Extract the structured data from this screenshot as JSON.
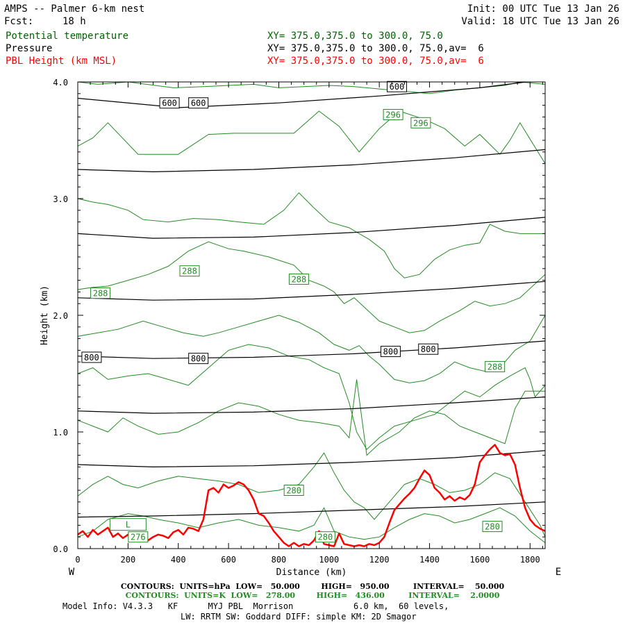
{
  "header": {
    "title": "AMPS -- Palmer 6-km nest",
    "fcst_label": "Fcst:",
    "fcst_value": "18 h",
    "init": "Init: 00 UTC Tue 13 Jan 26",
    "valid": "Valid: 18 UTC Tue 13 Jan 26",
    "fields": [
      {
        "name": "Potential temperature",
        "xy": "XY= 375.0,375.0 to 300.0, 75.0",
        "color": "#006400"
      },
      {
        "name": "Pressure",
        "xy": "XY= 375.0,375.0 to 300.0, 75.0,av=  6",
        "color": "#000000"
      },
      {
        "name": "PBL Height (km MSL)",
        "xy": "XY= 375.0,375.0 to 300.0, 75.0,av=  6",
        "color": "#ff0000"
      }
    ]
  },
  "chart_data": {
    "type": "line",
    "xlabel": "Distance (km)",
    "ylabel": "Height (km)",
    "xlim": [
      0,
      1860
    ],
    "ylim": [
      0,
      4.0
    ],
    "x_ticks": [
      0,
      200,
      400,
      600,
      800,
      1000,
      1200,
      1400,
      1600,
      1800
    ],
    "y_ticks": [
      "0.0",
      "1.0",
      "2.0",
      "3.0",
      "4.0"
    ],
    "west_label": "W",
    "east_label": "E",
    "pressure_contours": {
      "color": "#000000",
      "lines": [
        {
          "x": [
            0,
            400,
            800,
            1200,
            1600,
            1860
          ],
          "y": [
            3.86,
            3.78,
            3.82,
            3.88,
            3.95,
            4.02
          ]
        },
        {
          "x": [
            0,
            300,
            700,
            1100,
            1500,
            1860
          ],
          "y": [
            3.25,
            3.23,
            3.25,
            3.29,
            3.35,
            3.42
          ]
        },
        {
          "x": [
            0,
            300,
            700,
            1100,
            1500,
            1860
          ],
          "y": [
            2.7,
            2.66,
            2.67,
            2.71,
            2.77,
            2.84
          ]
        },
        {
          "x": [
            0,
            300,
            700,
            1100,
            1500,
            1860
          ],
          "y": [
            2.15,
            2.13,
            2.14,
            2.18,
            2.23,
            2.29
          ]
        },
        {
          "x": [
            0,
            300,
            700,
            1100,
            1500,
            1860
          ],
          "y": [
            1.65,
            1.63,
            1.64,
            1.67,
            1.72,
            1.78
          ]
        },
        {
          "x": [
            0,
            300,
            700,
            1100,
            1500,
            1860
          ],
          "y": [
            1.18,
            1.16,
            1.17,
            1.2,
            1.25,
            1.3
          ]
        },
        {
          "x": [
            0,
            300,
            700,
            1100,
            1500,
            1860
          ],
          "y": [
            0.72,
            0.7,
            0.71,
            0.74,
            0.78,
            0.84
          ]
        },
        {
          "x": [
            0,
            300,
            700,
            1100,
            1500,
            1860
          ],
          "y": [
            0.27,
            0.28,
            0.3,
            0.33,
            0.36,
            0.4
          ]
        }
      ],
      "labels": [
        {
          "text": "600",
          "x": 365,
          "y": 3.82
        },
        {
          "text": "600",
          "x": 480,
          "y": 3.82
        },
        {
          "text": "600",
          "x": 1270,
          "y": 3.96
        },
        {
          "text": "800",
          "x": 55,
          "y": 1.64
        },
        {
          "text": "800",
          "x": 480,
          "y": 1.63
        },
        {
          "text": "800",
          "x": 1245,
          "y": 1.69
        },
        {
          "text": "800",
          "x": 1395,
          "y": 1.71
        }
      ]
    },
    "theta_contours": {
      "color": "#228B22",
      "lines": [
        {
          "x": [
            0,
            80,
            200,
            380,
            500,
            600,
            700,
            800,
            900,
            1000,
            1100,
            1200,
            1300,
            1400,
            1500,
            1600,
            1700,
            1760,
            1860
          ],
          "y": [
            4.0,
            3.98,
            4.0,
            3.95,
            3.96,
            3.97,
            3.98,
            3.95,
            3.96,
            3.97,
            3.96,
            3.94,
            3.92,
            3.9,
            3.93,
            3.95,
            3.97,
            4.0,
            3.98
          ]
        },
        {
          "x": [
            0,
            60,
            120,
            240,
            400,
            520,
            620,
            720,
            860,
            960,
            1040,
            1120,
            1200,
            1280,
            1380,
            1460,
            1540,
            1600,
            1680,
            1720,
            1760,
            1860
          ],
          "y": [
            3.45,
            3.52,
            3.65,
            3.38,
            3.38,
            3.55,
            3.56,
            3.56,
            3.56,
            3.75,
            3.62,
            3.4,
            3.6,
            3.75,
            3.68,
            3.6,
            3.45,
            3.55,
            3.38,
            3.5,
            3.65,
            3.3
          ]
        },
        {
          "x": [
            0,
            60,
            120,
            200,
            260,
            360,
            460,
            560,
            640,
            740,
            820,
            880,
            940,
            1000,
            1080,
            1160,
            1220,
            1260,
            1300,
            1360,
            1420,
            1480,
            1540,
            1600,
            1640,
            1700,
            1760,
            1860
          ],
          "y": [
            3.0,
            2.97,
            2.95,
            2.9,
            2.82,
            2.8,
            2.83,
            2.82,
            2.8,
            2.78,
            2.9,
            3.05,
            2.92,
            2.8,
            2.75,
            2.65,
            2.55,
            2.4,
            2.32,
            2.35,
            2.48,
            2.56,
            2.6,
            2.62,
            2.78,
            2.72,
            2.7,
            2.7
          ]
        },
        {
          "x": [
            0,
            60,
            120,
            200,
            280,
            360,
            440,
            520,
            600,
            660,
            760,
            860,
            920,
            980,
            1020,
            1060,
            1100,
            1150,
            1200,
            1260,
            1320,
            1380,
            1440,
            1520,
            1580,
            1640,
            1700,
            1760,
            1860
          ],
          "y": [
            2.22,
            2.24,
            2.25,
            2.3,
            2.35,
            2.42,
            2.55,
            2.63,
            2.57,
            2.55,
            2.5,
            2.43,
            2.3,
            2.25,
            2.2,
            2.1,
            2.15,
            2.05,
            1.95,
            1.9,
            1.85,
            1.87,
            1.95,
            2.04,
            2.12,
            2.08,
            2.1,
            2.15,
            2.35
          ]
        },
        {
          "x": [
            0,
            80,
            160,
            260,
            340,
            420,
            500,
            560,
            640,
            720,
            800,
            880,
            960,
            1020,
            1080,
            1120,
            1160,
            1200,
            1260,
            1320,
            1380,
            1440,
            1500,
            1560,
            1620,
            1680,
            1740,
            1800,
            1860
          ],
          "y": [
            1.82,
            1.85,
            1.88,
            1.95,
            1.9,
            1.85,
            1.82,
            1.85,
            1.9,
            1.95,
            2.0,
            1.94,
            1.85,
            1.75,
            1.7,
            1.74,
            1.65,
            1.58,
            1.45,
            1.42,
            1.44,
            1.5,
            1.6,
            1.55,
            1.52,
            1.55,
            1.7,
            1.78,
            2.0
          ]
        },
        {
          "x": [
            0,
            60,
            120,
            200,
            280,
            360,
            440,
            520,
            600,
            680,
            760,
            840,
            920,
            980,
            1040,
            1080,
            1110,
            1150,
            1200,
            1260,
            1340,
            1420,
            1480,
            1540,
            1600,
            1660,
            1720,
            1780,
            1800,
            1820,
            1860
          ],
          "y": [
            1.5,
            1.55,
            1.45,
            1.48,
            1.5,
            1.45,
            1.4,
            1.55,
            1.7,
            1.75,
            1.72,
            1.65,
            1.62,
            1.55,
            1.5,
            1.25,
            1.0,
            0.85,
            0.95,
            1.05,
            1.1,
            1.15,
            1.25,
            1.35,
            1.3,
            1.4,
            1.48,
            1.55,
            1.45,
            1.3,
            1.4
          ]
        },
        {
          "x": [
            0,
            60,
            120,
            180,
            240,
            320,
            400,
            480,
            560,
            640,
            720,
            800,
            880,
            960,
            1040,
            1080,
            1110,
            1150,
            1200,
            1280,
            1340,
            1400,
            1460,
            1520,
            1580,
            1640,
            1700,
            1740,
            1780,
            1860
          ],
          "y": [
            1.1,
            1.05,
            1.0,
            1.12,
            1.05,
            0.98,
            1.0,
            1.08,
            1.18,
            1.25,
            1.22,
            1.15,
            1.1,
            1.08,
            1.05,
            0.95,
            1.45,
            0.8,
            0.9,
            1.0,
            1.12,
            1.18,
            1.15,
            1.05,
            1.0,
            0.95,
            0.9,
            1.2,
            1.35,
            1.35
          ]
        },
        {
          "x": [
            0,
            60,
            120,
            180,
            240,
            320,
            400,
            480,
            560,
            640,
            720,
            800,
            880,
            940,
            980,
            1020,
            1060,
            1100,
            1140,
            1180,
            1240,
            1300,
            1360,
            1420,
            1480,
            1540,
            1600,
            1660,
            1720,
            1780,
            1840,
            1860
          ],
          "y": [
            0.45,
            0.55,
            0.62,
            0.55,
            0.52,
            0.58,
            0.62,
            0.6,
            0.58,
            0.55,
            0.48,
            0.5,
            0.55,
            0.7,
            0.82,
            0.65,
            0.5,
            0.4,
            0.35,
            0.25,
            0.4,
            0.55,
            0.6,
            0.55,
            0.48,
            0.5,
            0.55,
            0.65,
            0.6,
            0.4,
            0.2,
            0.1
          ]
        },
        {
          "x": [
            0,
            60,
            120,
            200,
            260,
            320,
            400,
            480,
            560,
            640,
            720,
            800,
            880,
            940,
            980,
            1020,
            1080,
            1140,
            1200,
            1260,
            1320,
            1380,
            1440,
            1500,
            1560,
            1620,
            1680,
            1740,
            1800,
            1860
          ],
          "y": [
            0.1,
            0.15,
            0.25,
            0.3,
            0.28,
            0.25,
            0.22,
            0.18,
            0.22,
            0.25,
            0.2,
            0.18,
            0.15,
            0.2,
            0.35,
            0.15,
            0.1,
            0.08,
            0.1,
            0.18,
            0.25,
            0.3,
            0.28,
            0.22,
            0.25,
            0.3,
            0.35,
            0.28,
            0.15,
            0.05
          ]
        }
      ],
      "labels": [
        {
          "text": "296",
          "x": 1255,
          "y": 3.72
        },
        {
          "text": "296",
          "x": 1365,
          "y": 3.65
        },
        {
          "text": "288",
          "x": 90,
          "y": 2.19
        },
        {
          "text": "288",
          "x": 445,
          "y": 2.38
        },
        {
          "text": "288",
          "x": 880,
          "y": 2.31
        },
        {
          "text": "288",
          "x": 1660,
          "y": 1.56
        },
        {
          "text": "280",
          "x": 860,
          "y": 0.5
        },
        {
          "text": "280",
          "x": 1650,
          "y": 0.19
        },
        {
          "text": "280",
          "x": 985,
          "y": 0.1
        },
        {
          "text": "276",
          "x": 240,
          "y": 0.1
        }
      ],
      "low_marker": {
        "text": "L",
        "x": 200,
        "y": 0.21
      }
    },
    "series": [
      {
        "name": "PBL Height (km MSL)",
        "color": "#ff0000",
        "x": [
          0,
          20,
          40,
          60,
          80,
          100,
          120,
          140,
          160,
          180,
          200,
          220,
          240,
          260,
          280,
          300,
          320,
          340,
          360,
          380,
          400,
          420,
          440,
          460,
          480,
          500,
          520,
          540,
          560,
          580,
          600,
          620,
          640,
          660,
          680,
          700,
          720,
          740,
          760,
          780,
          800,
          820,
          840,
          860,
          880,
          900,
          920,
          940,
          960,
          980,
          1000,
          1020,
          1040,
          1060,
          1080,
          1100,
          1120,
          1140,
          1160,
          1180,
          1200,
          1220,
          1240,
          1260,
          1280,
          1300,
          1320,
          1340,
          1360,
          1380,
          1400,
          1420,
          1440,
          1460,
          1480,
          1500,
          1520,
          1540,
          1560,
          1580,
          1600,
          1620,
          1640,
          1660,
          1680,
          1700,
          1720,
          1740,
          1760,
          1780,
          1800,
          1820,
          1840,
          1860
        ],
        "y": [
          0.12,
          0.15,
          0.1,
          0.16,
          0.12,
          0.15,
          0.18,
          0.1,
          0.13,
          0.09,
          0.12,
          0.08,
          0.11,
          0.13,
          0.07,
          0.1,
          0.12,
          0.11,
          0.09,
          0.14,
          0.16,
          0.12,
          0.18,
          0.17,
          0.15,
          0.25,
          0.5,
          0.52,
          0.48,
          0.55,
          0.52,
          0.54,
          0.57,
          0.55,
          0.5,
          0.42,
          0.3,
          0.28,
          0.22,
          0.15,
          0.1,
          0.05,
          0.02,
          0.05,
          0.02,
          0.04,
          0.03,
          0.07,
          0.15,
          0.04,
          0.03,
          0.02,
          0.13,
          0.04,
          0.03,
          0.02,
          0.03,
          0.02,
          0.04,
          0.03,
          0.05,
          0.1,
          0.22,
          0.33,
          0.38,
          0.43,
          0.47,
          0.52,
          0.6,
          0.67,
          0.63,
          0.52,
          0.48,
          0.42,
          0.45,
          0.41,
          0.44,
          0.42,
          0.46,
          0.55,
          0.74,
          0.8,
          0.85,
          0.89,
          0.82,
          0.8,
          0.81,
          0.72,
          0.52,
          0.35,
          0.25,
          0.2,
          0.17,
          0.15
        ]
      }
    ]
  },
  "footer": {
    "line1_label": "CONTOURS:  UNITS=hPa  LOW=   50.000        HIGH=   950.00         INTERVAL=    50.000",
    "line2_label": "CONTOURS:  UNITS=K  LOW=   278.00        HIGH=   436.00         INTERVAL=    2.0000",
    "model_info": "Model Info: V4.3.3   KF      MYJ PBL  Morrison            6.0 km,  60 levels,",
    "physics": "LW: RRTM SW: Goddard DIFF: simple KM: 2D Smagor"
  }
}
